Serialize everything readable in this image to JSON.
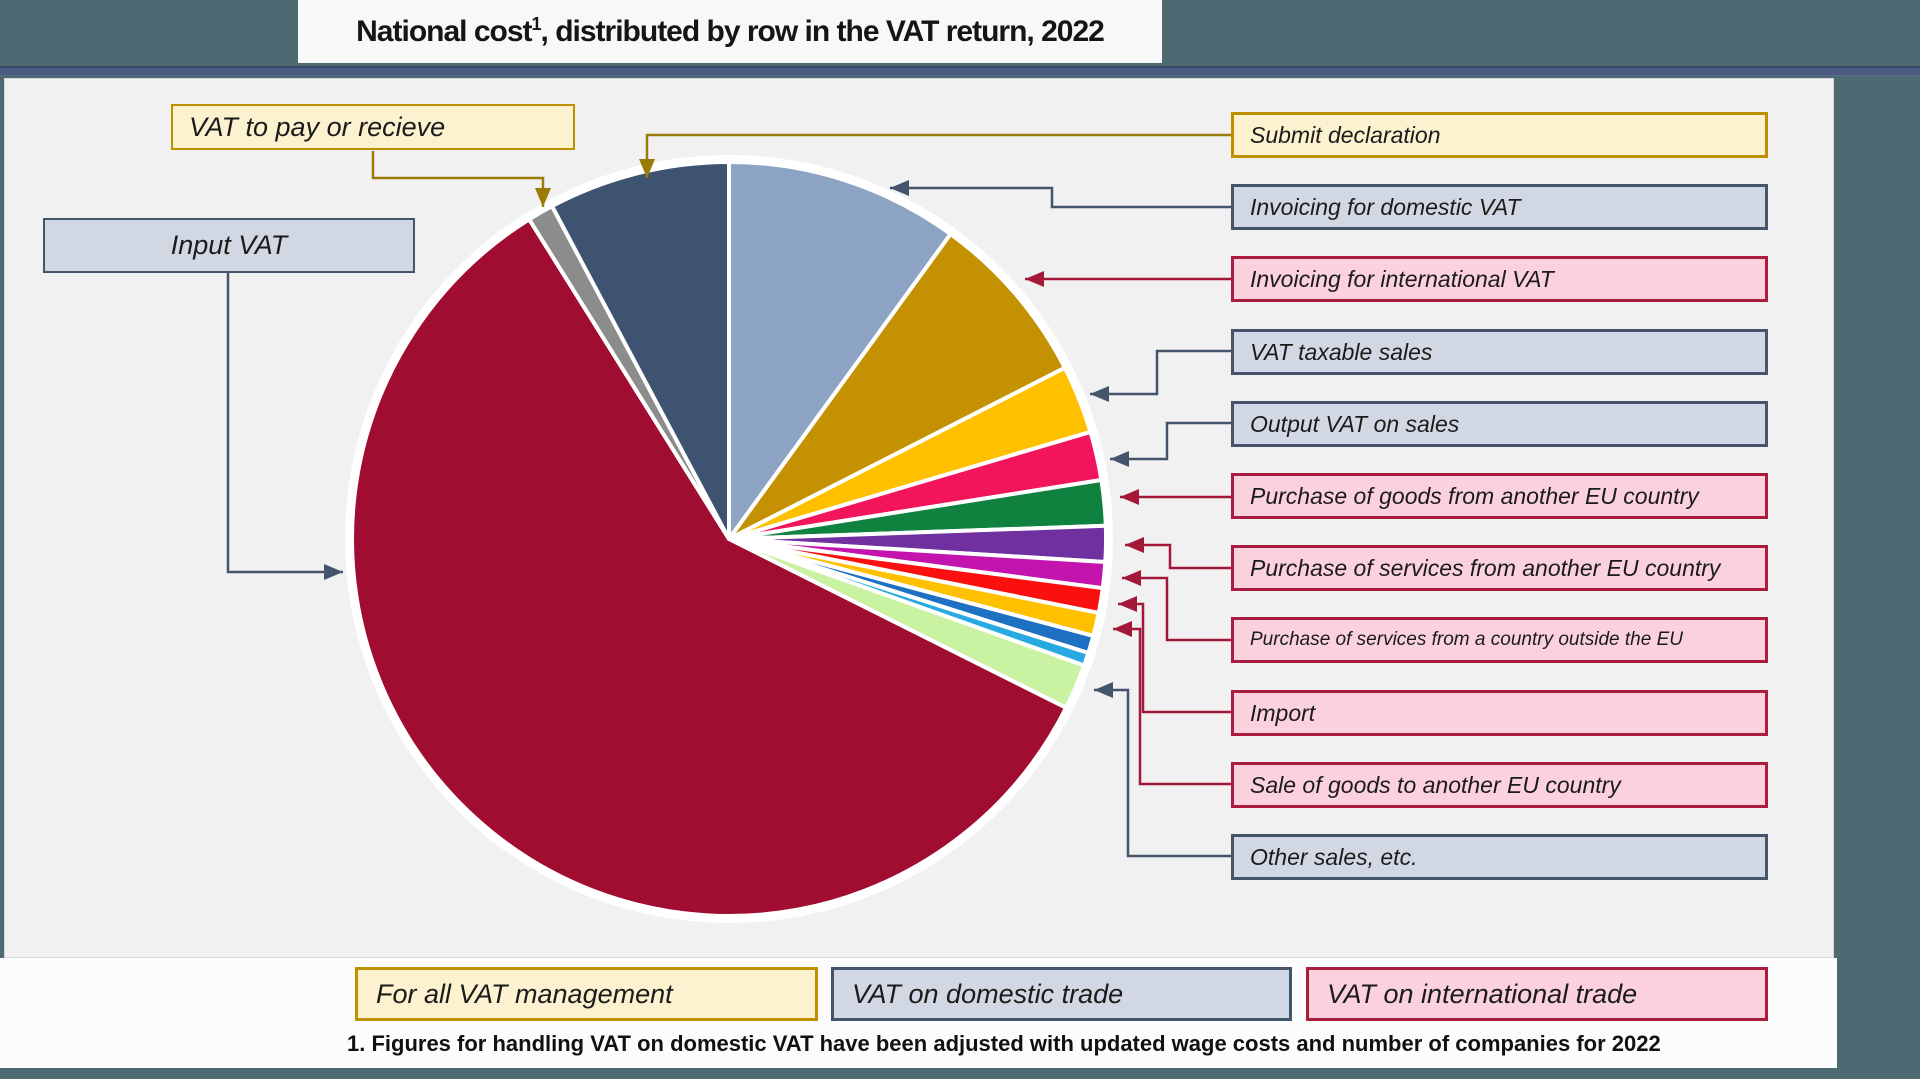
{
  "title": {
    "text_before_sup": "National cost",
    "sup": "1",
    "text_after_sup": ", distributed by row in the VAT return, 2022"
  },
  "footnote": "1. Figures for handling VAT on domestic VAT have been adjusted with updated wage costs and number of companies for 2022",
  "left_labels": [
    {
      "id": "vat-to-pay-or-receive",
      "label": "VAT to pay or recieve",
      "style": "cream"
    },
    {
      "id": "input-vat",
      "label": "Input VAT",
      "style": "gray"
    }
  ],
  "right_labels": [
    {
      "id": "submit-declaration",
      "label": "Submit declaration",
      "style": "cream",
      "small": false
    },
    {
      "id": "invoicing-domestic-vat",
      "label": "Invoicing for domestic VAT",
      "style": "gray",
      "small": false
    },
    {
      "id": "invoicing-international-vat",
      "label": "Invoicing for international VAT",
      "style": "pink",
      "small": false
    },
    {
      "id": "vat-taxable-sales",
      "label": "VAT taxable sales",
      "style": "gray",
      "small": false
    },
    {
      "id": "output-vat-on-sales",
      "label": "Output VAT on sales",
      "style": "gray",
      "small": false
    },
    {
      "id": "purchase-goods-eu",
      "label": "Purchase of goods from another EU country",
      "style": "pink",
      "small": false
    },
    {
      "id": "purchase-services-eu",
      "label": "Purchase of services from another EU country",
      "style": "pink",
      "small": false
    },
    {
      "id": "purchase-services-outside-eu",
      "label": "Purchase of services from a country outside the EU",
      "style": "pink",
      "small": true
    },
    {
      "id": "import",
      "label": "Import",
      "style": "pink",
      "small": false
    },
    {
      "id": "sale-goods-eu",
      "label": "Sale of goods to another EU country",
      "style": "pink",
      "small": false
    },
    {
      "id": "other-sales",
      "label": "Other sales, etc.",
      "style": "gray",
      "small": false
    }
  ],
  "legend": [
    {
      "id": "legend-all-vat",
      "label": "For all VAT management",
      "style": "cream"
    },
    {
      "id": "legend-domestic",
      "label": "VAT on domestic trade",
      "style": "gray"
    },
    {
      "id": "legend-international",
      "label": "VAT on international trade",
      "style": "pink"
    }
  ],
  "styles": {
    "cream": {
      "fill": "#FDF2CF",
      "border": "#BF9000"
    },
    "gray": {
      "fill": "#D2D8E3",
      "border": "#44546A"
    },
    "pink": {
      "fill": "#FBD1DD",
      "border": "#A91C3E"
    }
  },
  "arrow_colors": {
    "gold": "#9A7B06",
    "slate": "#44546A",
    "crimson": "#A31838"
  },
  "page_colors": {
    "frame": "#4D6A72",
    "chart_bg": "#F1F1F2",
    "divider": "#4C5C80",
    "title_bg": "#F8F8F8"
  },
  "chart_data": {
    "type": "pie",
    "title": "National cost, distributed by row in the VAT return, 2022",
    "legend_position": "bottom",
    "slices": [
      {
        "label": "Invoicing for domestic VAT",
        "color": "#8CA3C4",
        "degrees": 36.0,
        "percent": 10.0
      },
      {
        "label": "Invoicing for international VAT",
        "color": "#C49102",
        "degrees": 27.0,
        "percent": 7.5
      },
      {
        "label": "VAT taxable sales",
        "color": "#FFC000",
        "degrees": 10.5,
        "percent": 2.9
      },
      {
        "label": "Output VAT on sales",
        "color": "#F2155C",
        "degrees": 7.5,
        "percent": 2.1
      },
      {
        "label": "Purchase of goods from another EU country",
        "color": "#108240",
        "degrees": 7.0,
        "percent": 1.9
      },
      {
        "label": "Purchase of services from another EU country",
        "color": "#7030A0",
        "degrees": 5.5,
        "percent": 1.5
      },
      {
        "label": "Purchase of services from a country outside the EU",
        "color": "#C414AE",
        "degrees": 4.0,
        "percent": 1.1
      },
      {
        "label": "Import",
        "color": "#FB0F0F",
        "degrees": 3.8,
        "percent": 1.1
      },
      {
        "label": "Sale of goods to another EU country",
        "color": "#FFC000",
        "degrees": 3.6,
        "percent": 1.0
      },
      {
        "label": "",
        "color": "#1D70C2",
        "degrees": 2.7,
        "percent": 0.8
      },
      {
        "label": "",
        "color": "#29A9E1",
        "degrees": 2.0,
        "percent": 0.6
      },
      {
        "label": "Other sales, etc.",
        "color": "#C9F2A2",
        "degrees": 7.0,
        "percent": 1.9
      },
      {
        "label": "Input VAT",
        "color": "#A00D30",
        "degrees": 211.4,
        "percent": 58.7
      },
      {
        "label": "VAT to pay or recieve",
        "color": "#8C8C8C",
        "degrees": 4.0,
        "percent": 1.1
      },
      {
        "label": "Submit declaration",
        "color": "#3E5370",
        "degrees": 28.0,
        "percent": 7.8
      }
    ]
  }
}
